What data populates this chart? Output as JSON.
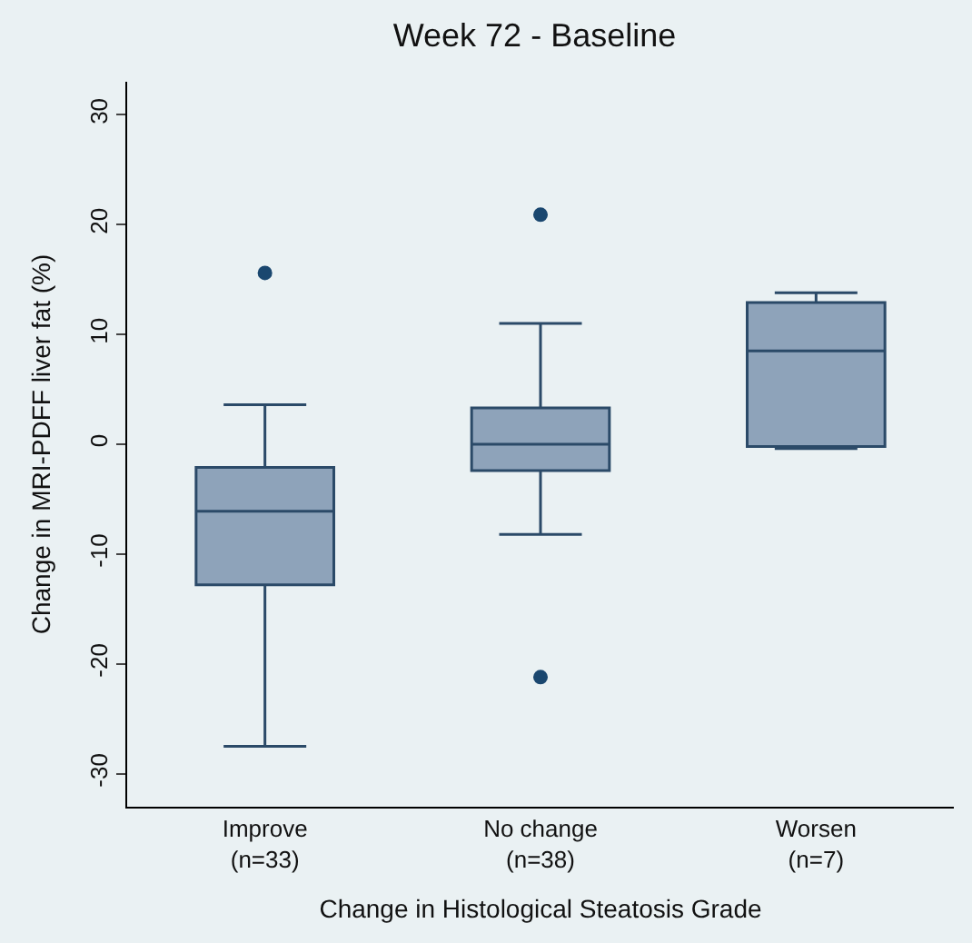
{
  "chart_data": {
    "type": "box",
    "title": "Week 72 - Baseline",
    "xlabel": "Change in Histological Steatosis Grade",
    "ylabel": "Change in MRI-PDFF liver fat (%)",
    "categories": [
      "Improve\n(n=33)",
      "No change\n(n=38)",
      "Worsen\n(n=7)"
    ],
    "boxes": [
      {
        "low": -27.5,
        "q1": -12.8,
        "median": -6.1,
        "q3": -2.1,
        "high": 3.6,
        "outliers": [
          15.6
        ]
      },
      {
        "low": -8.2,
        "q1": -2.4,
        "median": 0,
        "q3": 3.3,
        "high": 11.0,
        "outliers": [
          20.9,
          -21.2
        ]
      },
      {
        "low": -0.4,
        "q1": -0.2,
        "median": 8.5,
        "q3": 12.9,
        "high": 13.8
      }
    ],
    "color": "#8ea3ba",
    "ylim": [
      -33,
      33
    ],
    "yticks": [
      -30,
      -20,
      -10,
      0,
      10,
      20,
      30
    ],
    "grid": false
  }
}
